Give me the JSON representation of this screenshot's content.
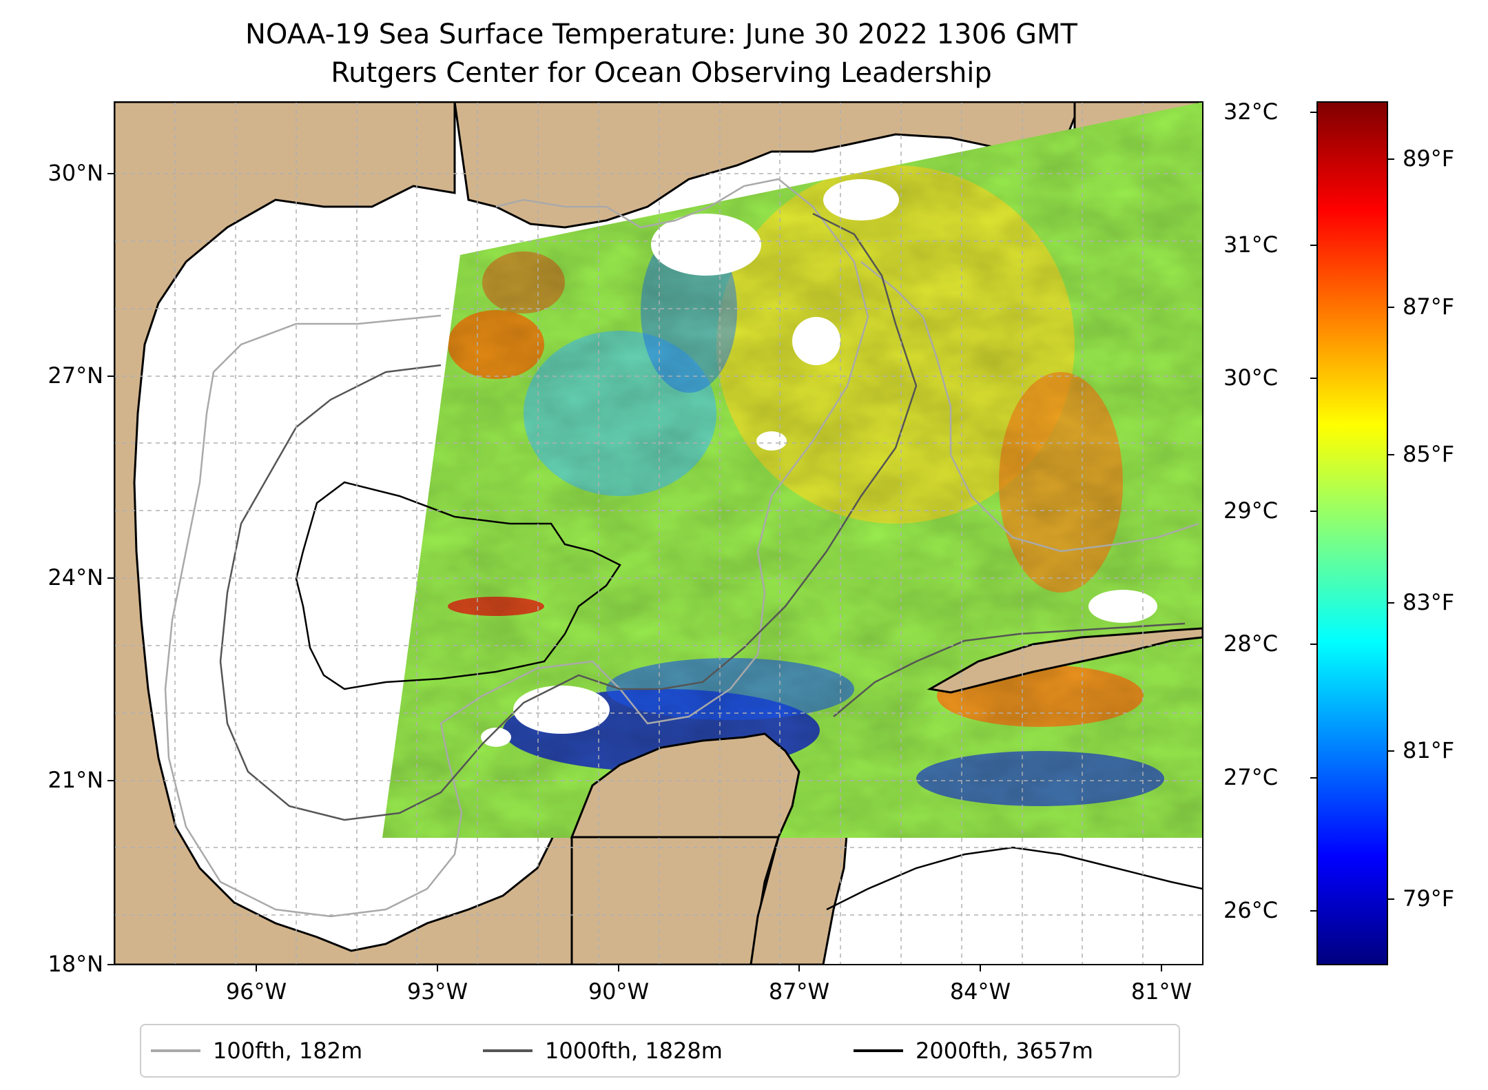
{
  "title": {
    "line1": "NOAA-19 Sea Surface Temperature: June 30 2022 1306 GMT",
    "line2": "Rutgers Center for Ocean Observing Leadership"
  },
  "map": {
    "extent": {
      "lon_min": -98.0,
      "lon_max": -79.7,
      "lat_min": 18.0,
      "lat_max": 31.0
    },
    "land_color": "#d2b48c",
    "ocean_nodata_color": "#ffffff",
    "lat_ticks": [
      {
        "value": 30,
        "label": "30°N"
      },
      {
        "value": 27,
        "label": "27°N"
      },
      {
        "value": 24,
        "label": "24°N"
      },
      {
        "value": 21,
        "label": "21°N"
      },
      {
        "value": 18,
        "label": "18°N"
      }
    ],
    "lon_ticks": [
      {
        "value": -96,
        "label": "96°W"
      },
      {
        "value": -93,
        "label": "93°W"
      },
      {
        "value": -90,
        "label": "90°W"
      },
      {
        "value": -87,
        "label": "87°W"
      },
      {
        "value": -84,
        "label": "84°W"
      },
      {
        "value": -81,
        "label": "81°W"
      }
    ]
  },
  "colorbar": {
    "colormap": "jet",
    "min_c": 25.6,
    "max_c": 32.1,
    "celsius_ticks": [
      {
        "value": 32,
        "label": "32°C"
      },
      {
        "value": 31,
        "label": "31°C"
      },
      {
        "value": 30,
        "label": "30°C"
      },
      {
        "value": 29,
        "label": "29°C"
      },
      {
        "value": 28,
        "label": "28°C"
      },
      {
        "value": 27,
        "label": "27°C"
      },
      {
        "value": 26,
        "label": "26°C"
      }
    ],
    "fahrenheit_ticks": [
      {
        "value": 89,
        "label": "89°F"
      },
      {
        "value": 87,
        "label": "87°F"
      },
      {
        "value": 85,
        "label": "85°F"
      },
      {
        "value": 83,
        "label": "83°F"
      },
      {
        "value": 81,
        "label": "81°F"
      },
      {
        "value": 79,
        "label": "79°F"
      }
    ]
  },
  "legend": {
    "entries": [
      {
        "label": "100fth, 182m",
        "color": "#a9a9a9"
      },
      {
        "label": "1000fth, 1828m",
        "color": "#555555"
      },
      {
        "label": "2000fth, 3657m",
        "color": "#000000"
      }
    ]
  }
}
